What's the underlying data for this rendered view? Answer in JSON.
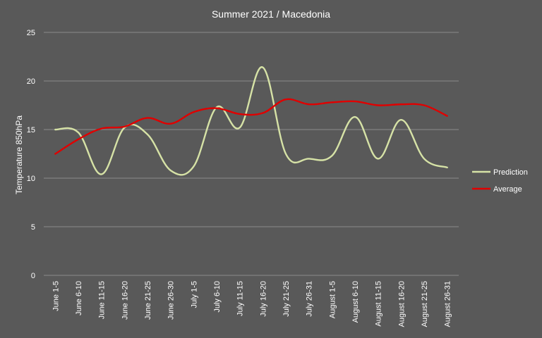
{
  "chart_data": {
    "type": "line",
    "title": "Summer  2021  / Macedonia",
    "ylabel": "Temperature  850hPa",
    "xlabel": "",
    "ylim": [
      0,
      25
    ],
    "yticks": [
      "0",
      "5",
      "10",
      "15",
      "20",
      "25"
    ],
    "ytick_values": [
      0,
      5,
      10,
      15,
      20,
      25
    ],
    "grid": true,
    "legend": "right",
    "categories": [
      "June 1-5",
      "June 6-10",
      "June 11-15",
      "June 16-20",
      "June 21-25",
      "June 26-30",
      "July 1-5",
      "July 6-10",
      "July 11-15",
      "July 16-20",
      "July 21-25",
      "July 26-31",
      "August 1-5",
      "August 6-10",
      "August 11-15",
      "August 16-20",
      "August 21-25",
      "August 26-31"
    ],
    "series": [
      {
        "name": "Prediction",
        "color": "#d6e2a6",
        "values": [
          15.0,
          14.7,
          10.4,
          15.2,
          14.5,
          10.8,
          11.2,
          17.3,
          15.2,
          21.4,
          12.5,
          12.0,
          12.3,
          16.3,
          12.0,
          16.0,
          12.0,
          11.1
        ]
      },
      {
        "name": "Average",
        "color": "#e00000",
        "values": [
          12.5,
          14.0,
          15.1,
          15.3,
          16.2,
          15.6,
          16.8,
          17.2,
          16.6,
          16.7,
          18.1,
          17.6,
          17.8,
          17.9,
          17.5,
          17.6,
          17.5,
          16.4
        ]
      }
    ]
  }
}
